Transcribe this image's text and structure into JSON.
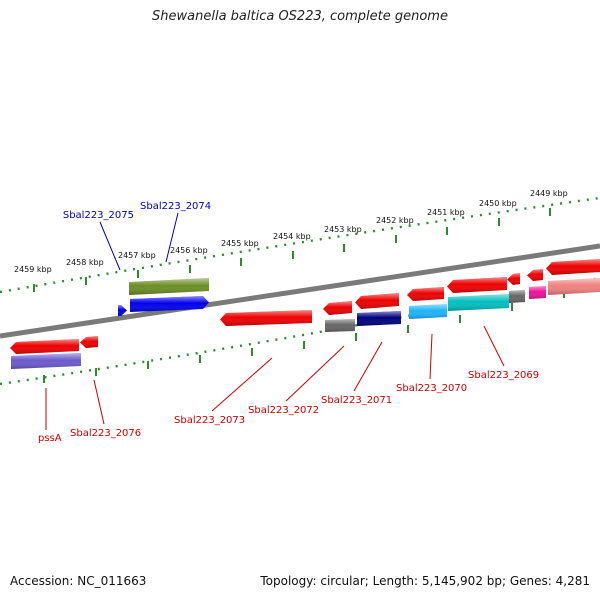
{
  "title": "Shewanella baltica OS223, complete genome",
  "footer": {
    "accession": "Accession: NC_011663",
    "summary": "Topology: circular; Length: 5,145,902 bp; Genes: 4,281"
  },
  "colors": {
    "backbone": "#7a7a7a",
    "ticks": "#2e8b2e",
    "tick_label": "#111111",
    "label_red": "#cc0000",
    "label_blue": "#0000bb"
  },
  "scale": [
    {
      "label": "2459 kbp"
    },
    {
      "label": "2458 kbp"
    },
    {
      "label": "2457 kbp"
    },
    {
      "label": "2456 kbp"
    },
    {
      "label": "2455 kbp"
    },
    {
      "label": "2454 kbp"
    },
    {
      "label": "2453 kbp"
    },
    {
      "label": "2452 kbp"
    },
    {
      "label": "2451 kbp"
    },
    {
      "label": "2450 kbp"
    },
    {
      "label": "2449 kbp"
    }
  ],
  "genes": [
    {
      "name": "gene-olive",
      "color": "#6b8e23"
    },
    {
      "name": "gene-blue-large",
      "color": "#0000ee"
    },
    {
      "name": "gene-blue-small",
      "color": "#0000ee"
    },
    {
      "name": "gene-red-a",
      "color": "#ee0000"
    },
    {
      "name": "gene-red-b",
      "color": "#ee0000"
    },
    {
      "name": "gene-red-c",
      "color": "#ee0000"
    },
    {
      "name": "gene-red-d",
      "color": "#ee0000"
    },
    {
      "name": "gene-red-e",
      "color": "#ee0000"
    },
    {
      "name": "gene-red-f",
      "color": "#ee0000"
    },
    {
      "name": "gene-red-g",
      "color": "#ee0000"
    },
    {
      "name": "gene-red-h",
      "color": "#ee0000"
    },
    {
      "name": "gene-red-i",
      "color": "#ee0000"
    },
    {
      "name": "gene-red-j",
      "color": "#ee0000"
    },
    {
      "name": "gene-magenta",
      "color": "#ee1199"
    },
    {
      "name": "gene-pink",
      "color": "#f08080"
    },
    {
      "name": "gene-purple",
      "color": "#6a5acd"
    },
    {
      "name": "gene-gray-a",
      "color": "#666666"
    },
    {
      "name": "gene-navy",
      "color": "#000080"
    },
    {
      "name": "gene-cyan-a",
      "color": "#1eb4ff"
    },
    {
      "name": "gene-cyan-b",
      "color": "#00bfbf"
    },
    {
      "name": "gene-gray-b",
      "color": "#666666"
    }
  ],
  "labels": [
    {
      "text": "Sbal223_2075",
      "color": "#0000bb"
    },
    {
      "text": "Sbal223_2074",
      "color": "#0000bb"
    },
    {
      "text": "pssA",
      "color": "#cc0000"
    },
    {
      "text": "Sbal223_2076",
      "color": "#cc0000"
    },
    {
      "text": "Sbal223_2073",
      "color": "#cc0000"
    },
    {
      "text": "Sbal223_2072",
      "color": "#cc0000"
    },
    {
      "text": "Sbal223_2071",
      "color": "#cc0000"
    },
    {
      "text": "Sbal223_2070",
      "color": "#cc0000"
    },
    {
      "text": "Sbal223_2069",
      "color": "#cc0000"
    }
  ]
}
